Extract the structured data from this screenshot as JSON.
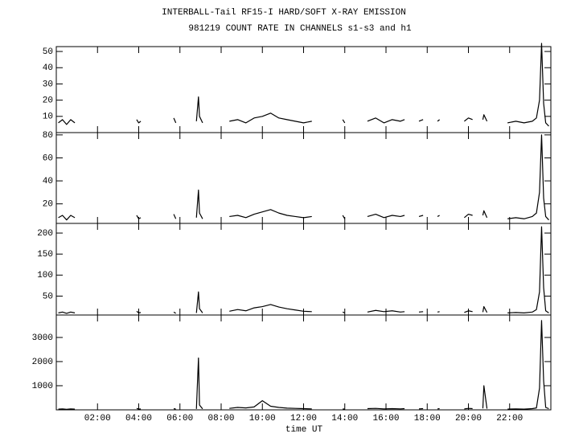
{
  "chart_data": {
    "type": "line",
    "title": "INTERBALL-Tail RF15-I HARD/SOFT X-RAY EMISSION",
    "subtitle": "981219  COUNT RATE IN CHANNELS s1-s3 and h1",
    "x_label": "time UT",
    "color": "#000000",
    "xlim": [
      0,
      24
    ],
    "xticks": [
      {
        "value": 2,
        "label": "02:00"
      },
      {
        "value": 4,
        "label": "04:00"
      },
      {
        "value": 6,
        "label": "06:00"
      },
      {
        "value": 8,
        "label": "08:00"
      },
      {
        "value": 10,
        "label": "10:00"
      },
      {
        "value": 12,
        "label": "12:00"
      },
      {
        "value": 14,
        "label": "14:00"
      },
      {
        "value": 16,
        "label": "16:00"
      },
      {
        "value": 18,
        "label": "18:00"
      },
      {
        "value": 20,
        "label": "20:00"
      },
      {
        "value": 22,
        "label": "22:00"
      }
    ],
    "x": [
      0.1,
      0.3,
      0.5,
      0.7,
      0.9,
      2.4,
      3.9,
      4.0,
      4.1,
      5.0,
      5.7,
      5.8,
      6.3,
      6.8,
      6.9,
      6.95,
      7.1,
      7.7,
      8.4,
      8.8,
      9.2,
      9.6,
      10.0,
      10.4,
      10.8,
      11.2,
      11.6,
      12.0,
      12.4,
      13.2,
      13.9,
      14.0,
      14.6,
      15.1,
      15.5,
      15.9,
      16.3,
      16.7,
      16.9,
      17.3,
      17.6,
      17.8,
      18.2,
      18.5,
      18.6,
      19.2,
      19.8,
      20.0,
      20.2,
      20.4,
      20.7,
      20.75,
      20.9,
      21.4,
      21.9,
      22.3,
      22.7,
      23.1,
      23.3,
      23.45,
      23.55,
      23.65,
      23.75,
      23.9
    ],
    "panels": [
      {
        "ylim": [
          0,
          53
        ],
        "yticks": [
          10,
          20,
          30,
          40,
          50
        ],
        "values": [
          6,
          8,
          5,
          8,
          6,
          null,
          8,
          6,
          7,
          null,
          9,
          6,
          null,
          7,
          22,
          10,
          6,
          null,
          7,
          8,
          6,
          9,
          10,
          12,
          9,
          8,
          7,
          6,
          7,
          null,
          8,
          6,
          null,
          7,
          9,
          6,
          8,
          7,
          8,
          null,
          7,
          8,
          null,
          7,
          8,
          null,
          7,
          9,
          8,
          null,
          8,
          11,
          7,
          null,
          6,
          7,
          6,
          7,
          9,
          20,
          55,
          18,
          6,
          4
        ]
      },
      {
        "ylim": [
          3,
          82
        ],
        "yticks": [
          20,
          40,
          60,
          80
        ],
        "values": [
          8,
          10,
          6,
          10,
          8,
          null,
          10,
          7,
          8,
          null,
          11,
          7,
          null,
          8,
          32,
          12,
          7,
          null,
          9,
          10,
          8,
          11,
          13,
          15,
          12,
          10,
          9,
          8,
          9,
          null,
          10,
          7,
          null,
          9,
          11,
          8,
          10,
          9,
          10,
          null,
          9,
          10,
          null,
          9,
          10,
          null,
          8,
          11,
          10,
          null,
          10,
          14,
          8,
          null,
          7,
          8,
          7,
          9,
          12,
          30,
          80,
          25,
          9,
          6
        ]
      },
      {
        "ylim": [
          5,
          223
        ],
        "yticks": [
          50,
          100,
          150,
          200
        ],
        "values": [
          10,
          12,
          9,
          12,
          10,
          null,
          14,
          10,
          11,
          null,
          12,
          9,
          null,
          10,
          60,
          20,
          10,
          null,
          14,
          18,
          15,
          22,
          25,
          30,
          24,
          20,
          17,
          14,
          13,
          null,
          12,
          10,
          null,
          12,
          16,
          13,
          15,
          12,
          13,
          null,
          12,
          13,
          null,
          12,
          13,
          null,
          11,
          15,
          13,
          null,
          12,
          25,
          11,
          null,
          10,
          11,
          10,
          12,
          18,
          60,
          215,
          70,
          15,
          10
        ]
      },
      {
        "ylim": [
          0,
          3930
        ],
        "yticks": [
          1000,
          2000,
          3000
        ],
        "values": [
          30,
          40,
          20,
          40,
          30,
          null,
          60,
          30,
          40,
          null,
          50,
          30,
          null,
          40,
          2150,
          200,
          40,
          null,
          60,
          100,
          80,
          120,
          380,
          150,
          100,
          70,
          60,
          50,
          40,
          null,
          40,
          30,
          null,
          50,
          60,
          40,
          50,
          40,
          50,
          null,
          40,
          50,
          null,
          40,
          50,
          null,
          40,
          60,
          50,
          null,
          60,
          1000,
          50,
          null,
          30,
          40,
          30,
          50,
          80,
          900,
          3700,
          1200,
          100,
          50
        ]
      }
    ]
  }
}
